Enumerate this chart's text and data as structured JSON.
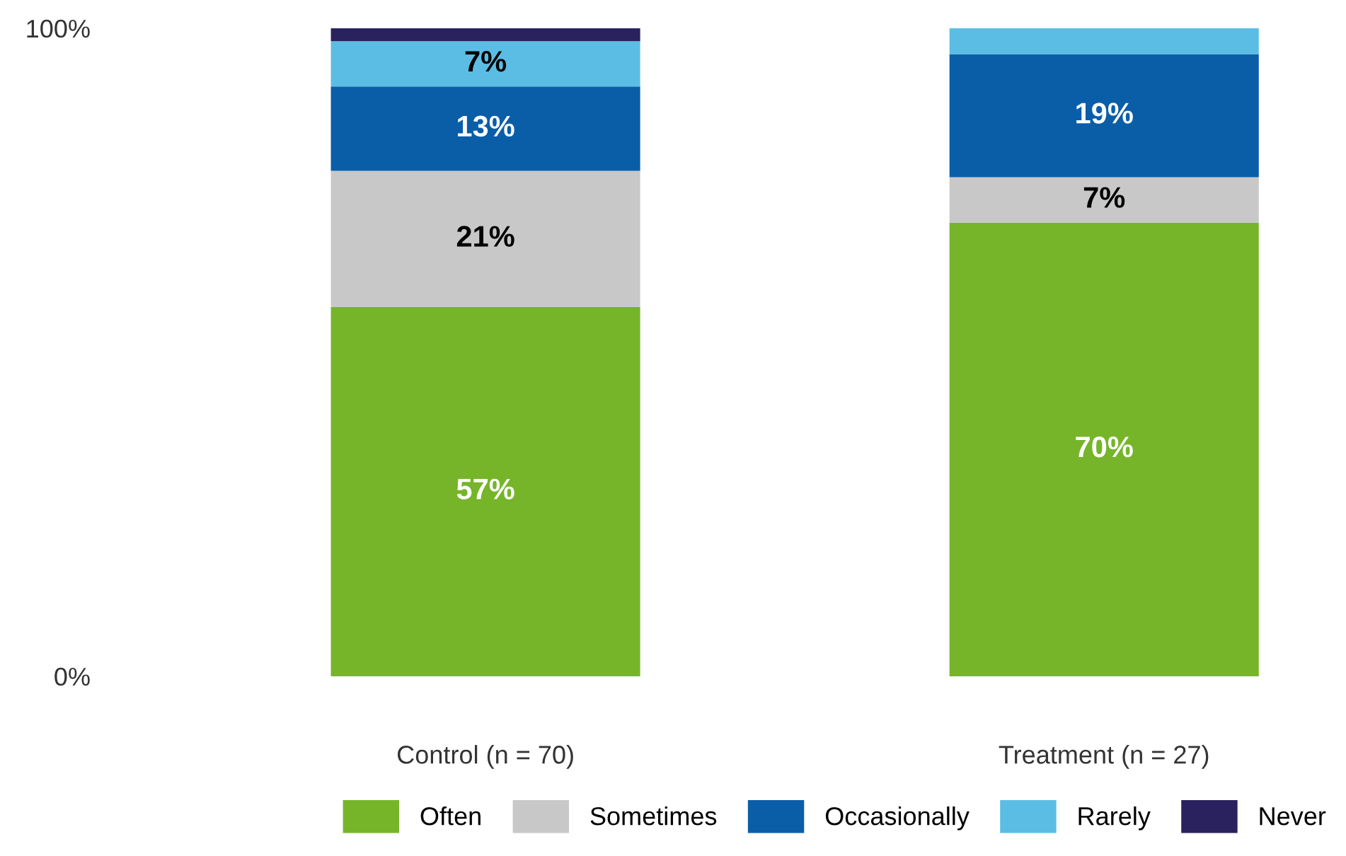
{
  "chart_data": {
    "type": "bar",
    "stacked": true,
    "categories": [
      "Control (n = 70)",
      "Treatment (n = 27)"
    ],
    "series": [
      {
        "name": "Often",
        "color": "#76b52a",
        "values": [
          57,
          70
        ],
        "value_labels": [
          "57%",
          "70%"
        ]
      },
      {
        "name": "Sometimes",
        "color": "#c8c8c8",
        "values": [
          21,
          7
        ],
        "value_labels": [
          "21%",
          "7%"
        ]
      },
      {
        "name": "Occasionally",
        "color": "#0a5ea8",
        "values": [
          13,
          19
        ],
        "value_labels": [
          "13%",
          "19%"
        ]
      },
      {
        "name": "Rarely",
        "color": "#5bbde4",
        "values": [
          7,
          4
        ],
        "value_labels": [
          "7%",
          null
        ]
      },
      {
        "name": "Never",
        "color": "#2a225e",
        "values": [
          2,
          0
        ],
        "value_labels": [
          null,
          null
        ]
      }
    ],
    "ylim": [
      0,
      100
    ],
    "yticks": [
      {
        "value": 0,
        "label": "0%"
      },
      {
        "value": 100,
        "label": "100%"
      }
    ],
    "grid": false,
    "legend": "bottom"
  }
}
